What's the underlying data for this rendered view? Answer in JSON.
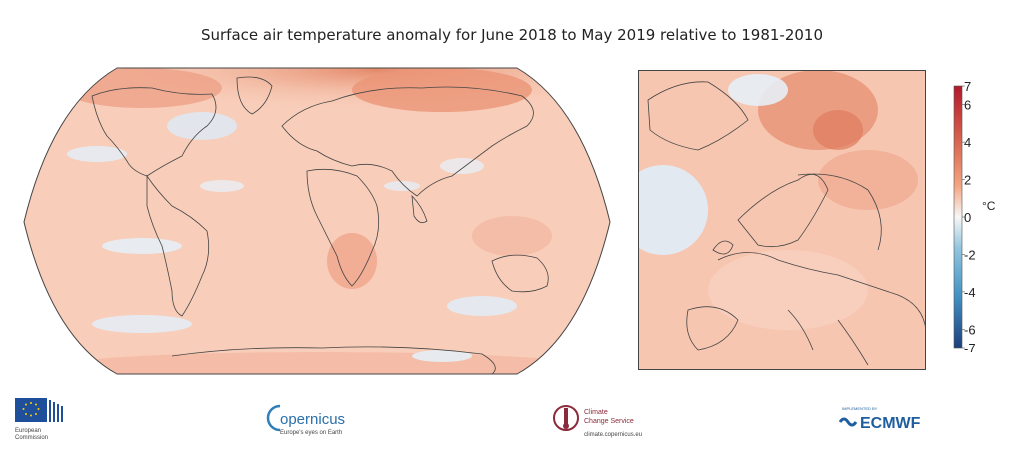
{
  "title": "Surface air temperature anomaly for June 2018 to May 2019 relative to 1981-2010",
  "colors": {
    "warm_strong": "#b2182b",
    "warm_mid": "#ef8a62",
    "warm_light": "#f8c8b3",
    "neutral": "#f7f7f7",
    "cool_light": "#d1e5f0",
    "cool_mid": "#67a9cf",
    "cool_strong": "#2166ac",
    "coastline": "#444444"
  },
  "maps": {
    "world_label": "global-map",
    "europe_label": "europe-map"
  },
  "colorbar": {
    "unit": "°C",
    "ticks": [
      "7",
      "6",
      "4",
      "2",
      "0",
      "-2",
      "-4",
      "-6",
      "-7"
    ],
    "range": [
      -7,
      7
    ]
  },
  "logos": {
    "ec_line1": "European",
    "ec_line2": "Commission",
    "copernicus_name": "opernicus",
    "copernicus_tag": "Europe's eyes on Earth",
    "c3s_line1": "Climate",
    "c3s_line2": "Change Service",
    "c3s_url": "climate.copernicus.eu",
    "ecmwf_small": "IMPLEMENTED BY",
    "ecmwf_name": "ECMWF"
  }
}
